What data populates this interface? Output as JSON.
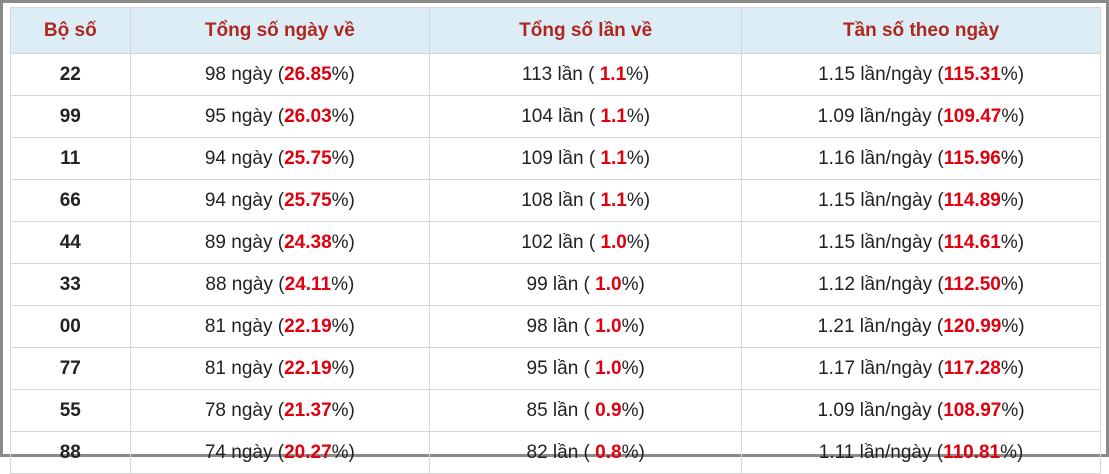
{
  "table": {
    "header": [
      "Bộ số",
      "Tổng số ngày về",
      "Tổng số lần về",
      "Tần số theo ngày"
    ],
    "rows": [
      [
        "22",
        [
          "98 ngày (",
          "26.85",
          "%)"
        ],
        [
          "113 lần ( ",
          "1.1",
          "%)"
        ],
        [
          "1.15 lần/ngày (",
          "115.31",
          "%)"
        ]
      ],
      [
        "99",
        [
          "95 ngày (",
          "26.03",
          "%)"
        ],
        [
          "104 lần ( ",
          "1.1",
          "%)"
        ],
        [
          "1.09 lần/ngày (",
          "109.47",
          "%)"
        ]
      ],
      [
        "11",
        [
          "94 ngày (",
          "25.75",
          "%)"
        ],
        [
          "109 lần ( ",
          "1.1",
          "%)"
        ],
        [
          "1.16 lần/ngày (",
          "115.96",
          "%)"
        ]
      ],
      [
        "66",
        [
          "94 ngày (",
          "25.75",
          "%)"
        ],
        [
          "108 lần ( ",
          "1.1",
          "%)"
        ],
        [
          "1.15 lần/ngày (",
          "114.89",
          "%)"
        ]
      ],
      [
        "44",
        [
          "89 ngày (",
          "24.38",
          "%)"
        ],
        [
          "102 lần ( ",
          "1.0",
          "%)"
        ],
        [
          "1.15 lần/ngày (",
          "114.61",
          "%)"
        ]
      ],
      [
        "33",
        [
          "88 ngày (",
          "24.11",
          "%)"
        ],
        [
          "99 lần ( ",
          "1.0",
          "%)"
        ],
        [
          "1.12 lần/ngày (",
          "112.50",
          "%)"
        ]
      ],
      [
        "00",
        [
          "81 ngày (",
          "22.19",
          "%)"
        ],
        [
          "98 lần ( ",
          "1.0",
          "%)"
        ],
        [
          "1.21 lần/ngày (",
          "120.99",
          "%)"
        ]
      ],
      [
        "77",
        [
          "81 ngày (",
          "22.19",
          "%)"
        ],
        [
          "95 lần ( ",
          "1.0",
          "%)"
        ],
        [
          "1.17 lần/ngày (",
          "117.28",
          "%)"
        ]
      ],
      [
        "55",
        [
          "78 ngày (",
          "21.37",
          "%)"
        ],
        [
          "85 lần ( ",
          "0.9",
          "%)"
        ],
        [
          "1.09 lần/ngày (",
          "108.97",
          "%)"
        ]
      ],
      [
        "88",
        [
          "74 ngày (",
          "20.27",
          "%)"
        ],
        [
          "82 lần ( ",
          "0.8",
          "%)"
        ],
        [
          "1.11 lần/ngày (",
          "110.81",
          "%)"
        ]
      ]
    ]
  }
}
